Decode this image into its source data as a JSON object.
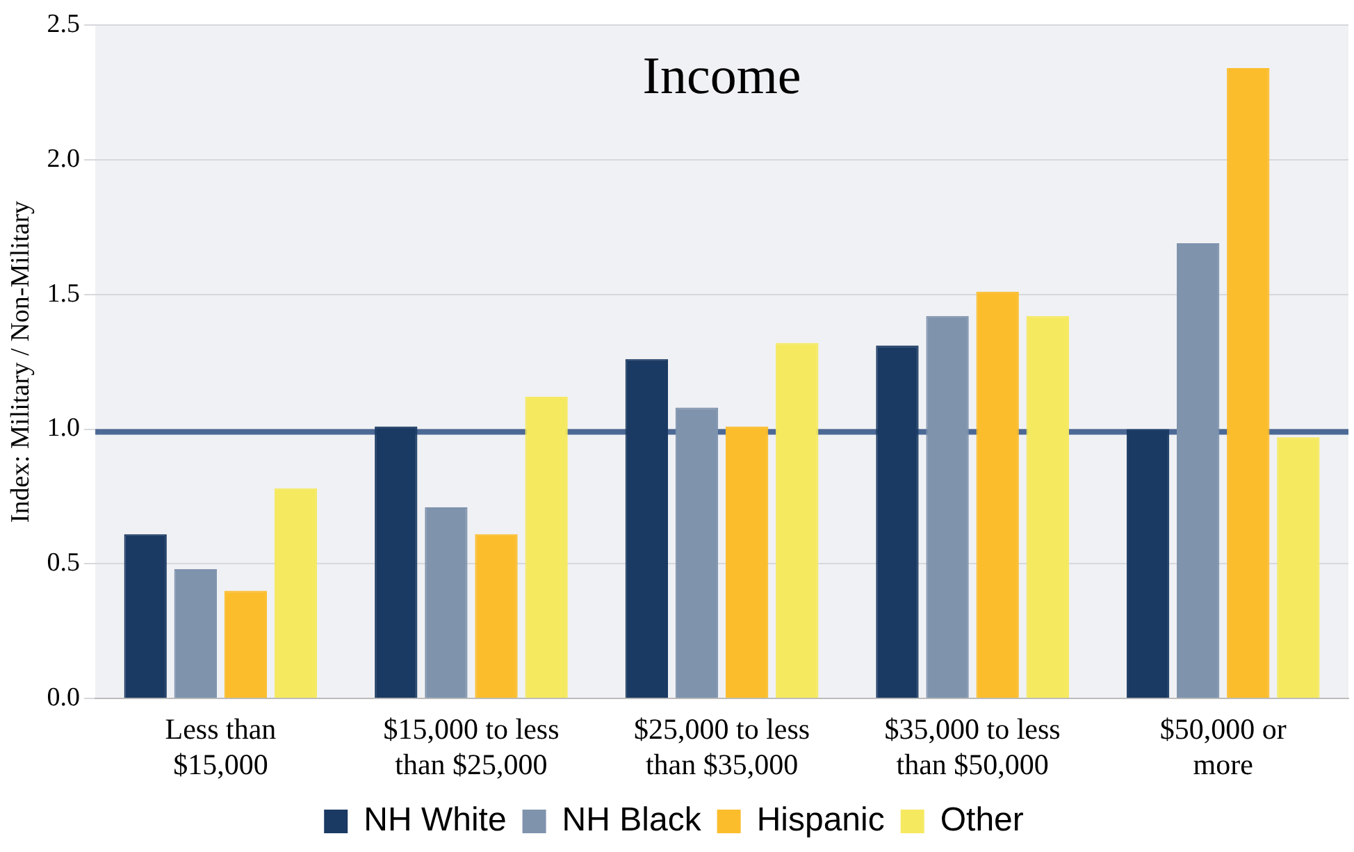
{
  "chart_data": {
    "type": "bar",
    "title": "Income",
    "ylabel": "Index: Military / Non-Military",
    "categories": [
      "Less than $15,000",
      "$15,000 to less than $25,000",
      "$25,000 to less than $35,000",
      "$35,000 to less than $50,000",
      "$50,000 or more"
    ],
    "series": [
      {
        "name": "NH White",
        "color": "#1b3a63",
        "values": [
          0.61,
          1.01,
          1.26,
          1.31,
          1.0
        ]
      },
      {
        "name": "NH Black",
        "color": "#7f93ad",
        "values": [
          0.48,
          0.71,
          1.08,
          1.42,
          1.69
        ]
      },
      {
        "name": "Hispanic",
        "color": "#fbbd2c",
        "values": [
          0.4,
          0.61,
          1.01,
          1.51,
          2.34
        ]
      },
      {
        "name": "Other",
        "color": "#f5e95f",
        "values": [
          0.78,
          1.12,
          1.32,
          1.42,
          0.97
        ]
      }
    ],
    "ylim": [
      0,
      2.5
    ],
    "yticks": [
      {
        "value": 0,
        "label": "0.0"
      },
      {
        "value": 0.5,
        "label": "0.5"
      },
      {
        "value": 1,
        "label": "1.0"
      },
      {
        "value": 1.5,
        "label": "1.5"
      },
      {
        "value": 2,
        "label": "2.0"
      },
      {
        "value": 2.5,
        "label": "2.5"
      }
    ],
    "ref_lines": [
      {
        "axis": "y",
        "value": 0.99,
        "color": "#2f5185"
      }
    ],
    "grid": "y",
    "legend": "bottom"
  }
}
